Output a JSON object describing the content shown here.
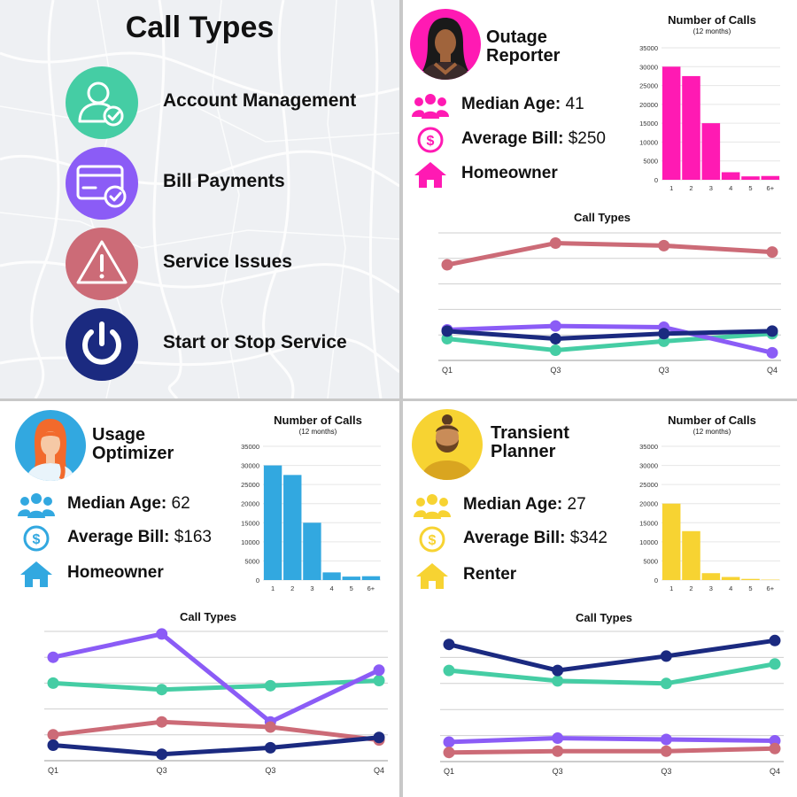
{
  "legend": {
    "title": "Call Types",
    "items": [
      {
        "label": "Account Management",
        "icon": "user-check-icon",
        "color": "#45cda4"
      },
      {
        "label": "Bill Payments",
        "icon": "credit-card-check-icon",
        "color": "#8b5cf6"
      },
      {
        "label": "Service Issues",
        "icon": "warning-triangle-icon",
        "color": "#cc6b77"
      },
      {
        "label": "Start or Stop Service",
        "icon": "power-icon",
        "color": "#1b2a80"
      }
    ]
  },
  "personas": [
    {
      "key": "outage",
      "name_line1": "Outage",
      "name_line2": "Reporter",
      "accent": "#ff1ab3",
      "avatar_bg": "#ff1ab3",
      "avatar_icon": "woman-long-hair-avatar-icon",
      "stats": {
        "age_label": "Median Age:",
        "age_value": "41",
        "bill_label": "Average Bill:",
        "bill_value": "$250",
        "housing": "Homeowner"
      }
    },
    {
      "key": "usage",
      "name_line1": "Usage",
      "name_line2": "Optimizer",
      "accent": "#32a8e0",
      "avatar_bg": "#32a8e0",
      "avatar_icon": "woman-red-hair-avatar-icon",
      "stats": {
        "age_label": "Median Age:",
        "age_value": "62",
        "bill_label": "Average Bill:",
        "bill_value": "$163",
        "housing": "Homeowner"
      }
    },
    {
      "key": "transient",
      "name_line1": "Transient",
      "name_line2": "Planner",
      "accent": "#f7d332",
      "avatar_bg": "#f7d332",
      "avatar_icon": "bearded-man-avatar-icon",
      "stats": {
        "age_label": "Median Age:",
        "age_value": "27",
        "bill_label": "Average Bill:",
        "bill_value": "$342",
        "housing": "Renter"
      }
    }
  ],
  "chart_data": [
    {
      "id": "outage-calls",
      "type": "bar",
      "title": "Number of Calls",
      "subtitle": "(12 months)",
      "categories": [
        "1",
        "2",
        "3",
        "4",
        "5",
        "6+"
      ],
      "values": [
        30000,
        27500,
        15000,
        2000,
        900,
        1000
      ],
      "ylim": [
        0,
        35000
      ],
      "yticks": [
        0,
        5000,
        10000,
        15000,
        20000,
        25000,
        30000,
        35000
      ],
      "color": "#ff1ab3"
    },
    {
      "id": "outage-types",
      "type": "line",
      "title": "Call Types",
      "categories": [
        "Q1",
        "Q3",
        "Q3",
        "Q4"
      ],
      "ylim": [
        0,
        100
      ],
      "series": [
        {
          "name": "Account Management",
          "color": "#45cda4",
          "values": [
            17,
            8,
            15,
            21
          ]
        },
        {
          "name": "Bill Payments",
          "color": "#8b5cf6",
          "values": [
            24,
            27,
            26,
            6
          ]
        },
        {
          "name": "Service Issues",
          "color": "#cc6b77",
          "values": [
            75,
            92,
            90,
            85
          ]
        },
        {
          "name": "Start or Stop Service",
          "color": "#1b2a80",
          "values": [
            23,
            17,
            21,
            23
          ]
        }
      ]
    },
    {
      "id": "usage-calls",
      "type": "bar",
      "title": "Number of Calls",
      "subtitle": "(12 months)",
      "categories": [
        "1",
        "2",
        "3",
        "4",
        "5",
        "6+"
      ],
      "values": [
        30000,
        27500,
        15000,
        2000,
        900,
        1000
      ],
      "ylim": [
        0,
        35000
      ],
      "yticks": [
        0,
        5000,
        10000,
        15000,
        20000,
        25000,
        30000,
        35000
      ],
      "color": "#32a8e0"
    },
    {
      "id": "usage-types",
      "type": "line",
      "title": "Call Types",
      "categories": [
        "Q1",
        "Q3",
        "Q3",
        "Q4"
      ],
      "ylim": [
        0,
        100
      ],
      "series": [
        {
          "name": "Account Management",
          "color": "#45cda4",
          "values": [
            60,
            55,
            58,
            62
          ]
        },
        {
          "name": "Bill Payments",
          "color": "#8b5cf6",
          "values": [
            80,
            98,
            30,
            70
          ]
        },
        {
          "name": "Service Issues",
          "color": "#cc6b77",
          "values": [
            20,
            30,
            26,
            16
          ]
        },
        {
          "name": "Start or Stop Service",
          "color": "#1b2a80",
          "values": [
            12,
            5,
            10,
            18
          ]
        }
      ]
    },
    {
      "id": "transient-calls",
      "type": "bar",
      "title": "Number of Calls",
      "subtitle": "(12 months)",
      "categories": [
        "1",
        "2",
        "3",
        "4",
        "5",
        "6+"
      ],
      "values": [
        20000,
        12800,
        1800,
        800,
        300,
        100
      ],
      "ylim": [
        0,
        35000
      ],
      "yticks": [
        0,
        5000,
        10000,
        15000,
        20000,
        25000,
        30000,
        35000
      ],
      "color": "#f7d332"
    },
    {
      "id": "transient-types",
      "type": "line",
      "title": "Call Types",
      "categories": [
        "Q1",
        "Q3",
        "Q3",
        "Q4"
      ],
      "ylim": [
        0,
        100
      ],
      "series": [
        {
          "name": "Account Management",
          "color": "#45cda4",
          "values": [
            70,
            62,
            60,
            75
          ]
        },
        {
          "name": "Bill Payments",
          "color": "#8b5cf6",
          "values": [
            15,
            18,
            17,
            16
          ]
        },
        {
          "name": "Service Issues",
          "color": "#cc6b77",
          "values": [
            7,
            8,
            8,
            10
          ]
        },
        {
          "name": "Start or Stop Service",
          "color": "#1b2a80",
          "values": [
            90,
            70,
            81,
            93
          ]
        }
      ]
    }
  ]
}
